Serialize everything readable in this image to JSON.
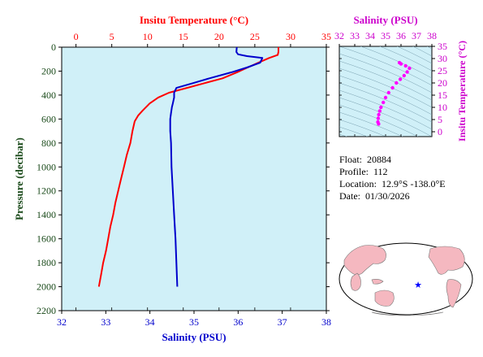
{
  "chart_data": [
    {
      "type": "line",
      "title": "",
      "top_axis": {
        "label": "Insitu Temperature (°C)",
        "range": [
          -2,
          35
        ],
        "ticks": [
          0,
          5,
          10,
          15,
          20,
          25,
          30,
          35
        ],
        "color": "#ff0000"
      },
      "bottom_axis": {
        "label": "Salinity (PSU)",
        "range": [
          32,
          38
        ],
        "ticks": [
          32,
          33,
          34,
          35,
          36,
          37,
          38
        ],
        "color": "#0000cc"
      },
      "y_axis": {
        "label": "Pressure (decibar)",
        "range": [
          0,
          2200
        ],
        "inverted": true,
        "ticks": [
          0,
          200,
          400,
          600,
          800,
          1000,
          1200,
          1400,
          1600,
          1800,
          2000,
          2200
        ],
        "color": "#1a4a1a"
      },
      "grid": false,
      "background": "#d0f0f8",
      "series": [
        {
          "name": "",
          "axis": "top",
          "color": "#ff0000",
          "points": [
            [
              28.3,
              0
            ],
            [
              28.3,
              40
            ],
            [
              28.2,
              65
            ],
            [
              27.0,
              90
            ],
            [
              25.5,
              130
            ],
            [
              24.0,
              170
            ],
            [
              22.5,
              210
            ],
            [
              20.5,
              260
            ],
            [
              18.0,
              300
            ],
            [
              15.5,
              340
            ],
            [
              13.0,
              380
            ],
            [
              11.5,
              420
            ],
            [
              10.3,
              470
            ],
            [
              9.3,
              530
            ],
            [
              8.7,
              570
            ],
            [
              8.2,
              620
            ],
            [
              7.9,
              700
            ],
            [
              7.6,
              800
            ],
            [
              7.1,
              900
            ],
            [
              6.7,
              1000
            ],
            [
              6.3,
              1100
            ],
            [
              5.9,
              1200
            ],
            [
              5.5,
              1300
            ],
            [
              5.2,
              1400
            ],
            [
              4.8,
              1500
            ],
            [
              4.5,
              1600
            ],
            [
              4.2,
              1700
            ],
            [
              3.8,
              1800
            ],
            [
              3.5,
              1900
            ],
            [
              3.2,
              2000
            ]
          ]
        },
        {
          "name": "",
          "axis": "bottom",
          "color": "#0000cc",
          "points": [
            [
              35.97,
              0
            ],
            [
              35.96,
              40
            ],
            [
              36.0,
              60
            ],
            [
              36.2,
              75
            ],
            [
              36.55,
              90
            ],
            [
              36.5,
              130
            ],
            [
              36.2,
              170
            ],
            [
              35.85,
              210
            ],
            [
              35.35,
              260
            ],
            [
              34.98,
              300
            ],
            [
              34.6,
              340
            ],
            [
              34.55,
              380
            ],
            [
              34.55,
              420
            ],
            [
              34.52,
              470
            ],
            [
              34.5,
              500
            ],
            [
              34.48,
              550
            ],
            [
              34.46,
              600
            ],
            [
              34.46,
              700
            ],
            [
              34.48,
              800
            ],
            [
              34.49,
              1000
            ],
            [
              34.52,
              1200
            ],
            [
              34.55,
              1400
            ],
            [
              34.58,
              1600
            ],
            [
              34.6,
              1800
            ],
            [
              34.62,
              2000
            ]
          ]
        }
      ]
    },
    {
      "type": "scatter",
      "title": "",
      "x_axis": {
        "label": "Salinity (PSU)",
        "range": [
          32,
          38
        ],
        "ticks": [
          32,
          33,
          34,
          35,
          36,
          37,
          38
        ],
        "color": "#cc00cc"
      },
      "y_axis": {
        "label": "Insitu Temperature (°C)",
        "range": [
          -2,
          35
        ],
        "ticks": [
          0,
          5,
          10,
          15,
          20,
          25,
          30,
          35
        ],
        "color": "#cc00cc"
      },
      "background": "#d0f0f8",
      "series": [
        {
          "name": "",
          "color": "#ff00ff",
          "points": [
            [
              35.9,
              28.3
            ],
            [
              36.0,
              27.8
            ],
            [
              36.3,
              27.0
            ],
            [
              36.55,
              26.0
            ],
            [
              36.4,
              24.5
            ],
            [
              36.2,
              23.0
            ],
            [
              35.95,
              21.5
            ],
            [
              35.7,
              20.0
            ],
            [
              35.45,
              18.0
            ],
            [
              35.2,
              16.0
            ],
            [
              35.0,
              14.0
            ],
            [
              34.85,
              12.0
            ],
            [
              34.7,
              10.0
            ],
            [
              34.62,
              8.5
            ],
            [
              34.56,
              7.0
            ],
            [
              34.52,
              5.5
            ],
            [
              34.5,
              4.0
            ],
            [
              34.55,
              3.2
            ]
          ]
        }
      ]
    }
  ],
  "info": {
    "float_label": "Float:",
    "float_value": "20884",
    "profile_label": "Profile:",
    "profile_value": "112",
    "location_label": "Location:",
    "location_value": "12.9°S  -138.0°E",
    "date_label": "Date:",
    "date_value": "01/30/2026"
  },
  "map": {
    "ocean_color": "#ffffff",
    "land_color": "#f5b8c0",
    "marker": {
      "symbol": "★",
      "color": "#0000ff",
      "lon": -138.0,
      "lat": -12.9
    }
  }
}
